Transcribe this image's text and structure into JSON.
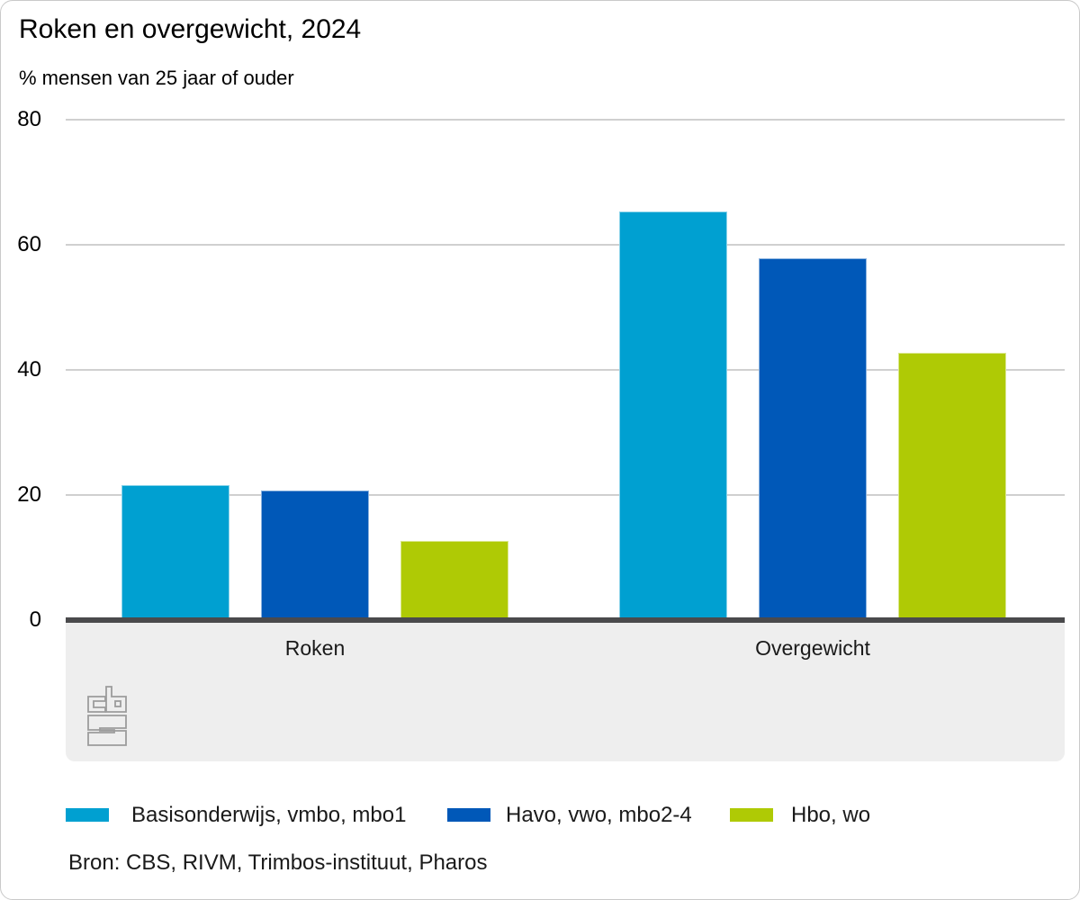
{
  "header": {
    "title": "Roken en overgewicht, 2024",
    "subtitle": "% mensen van 25 jaar of ouder"
  },
  "source": {
    "text": "Bron: CBS, RIVM, Trimbos-instituut, Pharos"
  },
  "branding": {
    "logo": "cbs-logo"
  },
  "colors": {
    "series_blue_light": "#00a0d1",
    "series_blue_dark": "#0058b8",
    "series_green": "#afca05",
    "axis_line": "#4a4a4c",
    "gridline": "#d0d0d0",
    "band": "#eeeeee",
    "logo": "#9c9c9c"
  },
  "chart_data": {
    "type": "bar",
    "title": "Roken en overgewicht, 2024",
    "ylabel": "% mensen van 25 jaar of ouder",
    "categories": [
      "Roken",
      "Overgewicht"
    ],
    "series": [
      {
        "name": "Basisonderwijs, vmbo, mbo1",
        "color": "#00a0d1",
        "values": [
          21.6,
          65.3
        ]
      },
      {
        "name": "Havo, vwo, mbo2-4",
        "color": "#0058b8",
        "values": [
          20.7,
          57.8
        ]
      },
      {
        "name": "Hbo, wo",
        "color": "#afca05",
        "values": [
          12.6,
          42.8
        ]
      }
    ],
    "ylim": [
      0,
      80
    ],
    "yticks": [
      0,
      20,
      40,
      60,
      80
    ],
    "grid": true,
    "legend_position": "bottom"
  }
}
